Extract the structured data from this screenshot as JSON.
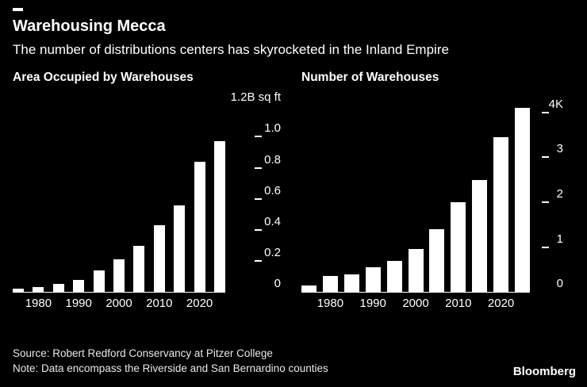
{
  "header": {
    "title": "Warehousing Mecca",
    "subtitle": "The number of distributions centers has skyrocketed in the Inland Empire"
  },
  "footer": {
    "source": "Source: Robert Redford Conservancy at Pitzer College",
    "note": "Note: Data encompass the Riverside and San Bernardino counties",
    "brand": "Bloomberg"
  },
  "colors": {
    "background": "#000000",
    "bar": "#ffffff",
    "text": "#ffffff"
  },
  "chart_data": [
    {
      "type": "bar",
      "title": "Area Occupied by Warehouses",
      "categories": [
        1975,
        1980,
        1985,
        1990,
        1995,
        2000,
        2005,
        2010,
        2015,
        2020,
        2025
      ],
      "values": [
        0.02,
        0.03,
        0.05,
        0.08,
        0.14,
        0.21,
        0.3,
        0.43,
        0.56,
        0.84,
        0.97
      ],
      "unit": "B sq ft",
      "ylim": [
        0,
        1.2
      ],
      "yticks": [
        {
          "v": 0,
          "label": "0"
        },
        {
          "v": 0.2,
          "label": "0.2"
        },
        {
          "v": 0.4,
          "label": "0.4"
        },
        {
          "v": 0.6,
          "label": "0.6"
        },
        {
          "v": 0.8,
          "label": "0.8"
        },
        {
          "v": 1.0,
          "label": "1.0"
        }
      ],
      "top_label": {
        "v": 1.2,
        "label": "1.2B sq ft"
      },
      "x_tick_labels": [
        {
          "index": 1,
          "label": "1980"
        },
        {
          "index": 3,
          "label": "1990"
        },
        {
          "index": 5,
          "label": "2000"
        },
        {
          "index": 7,
          "label": "2010"
        },
        {
          "index": 9,
          "label": "2020"
        }
      ],
      "legend": "none",
      "grid": false
    },
    {
      "type": "bar",
      "title": "Number of Warehouses",
      "categories": [
        1975,
        1980,
        1985,
        1990,
        1995,
        2000,
        2005,
        2010,
        2015,
        2020,
        2025
      ],
      "values": [
        0.15,
        0.35,
        0.4,
        0.55,
        0.7,
        0.95,
        1.4,
        2.0,
        2.5,
        3.45,
        4.1
      ],
      "unit": "K warehouses",
      "ylim": [
        0,
        4.15
      ],
      "yticks": [
        {
          "v": 0,
          "label": "0"
        },
        {
          "v": 1,
          "label": "1"
        },
        {
          "v": 2,
          "label": "2"
        },
        {
          "v": 3,
          "label": "3"
        },
        {
          "v": 4,
          "label": "4K"
        }
      ],
      "x_tick_labels": [
        {
          "index": 1,
          "label": "1980"
        },
        {
          "index": 3,
          "label": "1990"
        },
        {
          "index": 5,
          "label": "2000"
        },
        {
          "index": 7,
          "label": "2010"
        },
        {
          "index": 9,
          "label": "2020"
        }
      ],
      "legend": "none",
      "grid": false
    }
  ]
}
